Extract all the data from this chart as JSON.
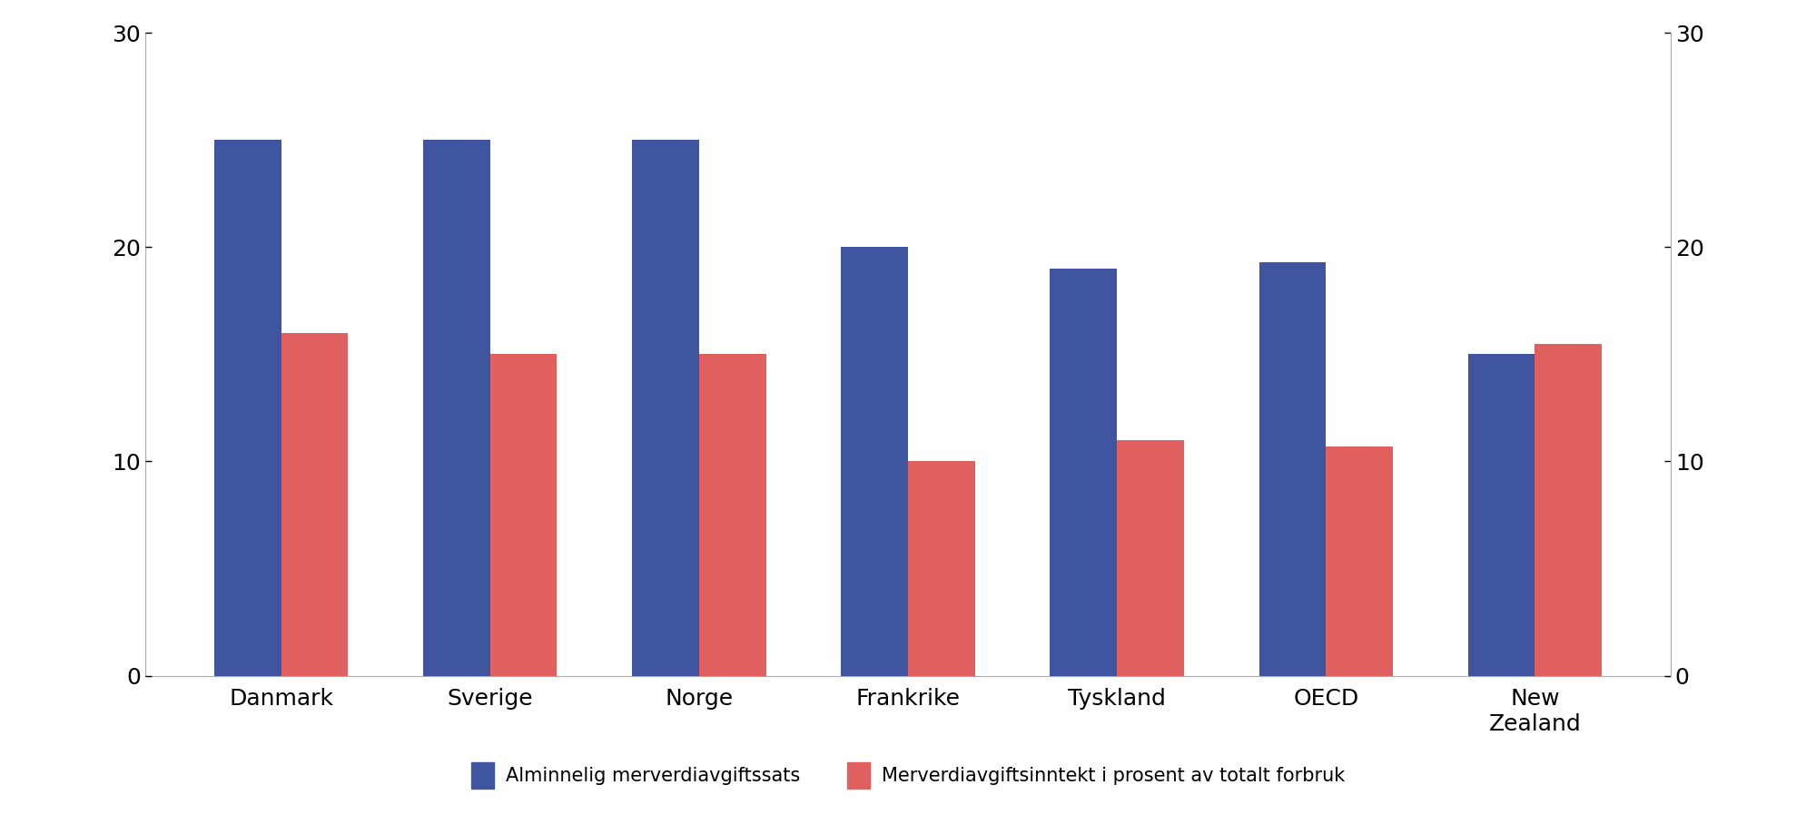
{
  "categories": [
    "Danmark",
    "Sverige",
    "Norge",
    "Frankrike",
    "Tyskland",
    "OECD",
    "New\nZealand"
  ],
  "blue_values": [
    25.0,
    25.0,
    25.0,
    20.0,
    19.0,
    19.3,
    15.0
  ],
  "red_values": [
    16.0,
    15.0,
    15.0,
    10.0,
    11.0,
    10.7,
    15.5
  ],
  "blue_color": "#4055a0",
  "red_color": "#e06060",
  "ylim": [
    0,
    30
  ],
  "yticks": [
    0,
    10,
    20,
    30
  ],
  "legend_blue": "Alminnelig merverdiavgiftssats",
  "legend_red": "Merverdiavgiftsinntekt i prosent av totalt forbruk",
  "bar_width": 0.32,
  "figsize": [
    20.0,
    9.08
  ],
  "dpi": 100,
  "background_color": "#ffffff",
  "tick_fontsize": 18,
  "legend_fontsize": 15,
  "spine_color": "#aaaaaa"
}
